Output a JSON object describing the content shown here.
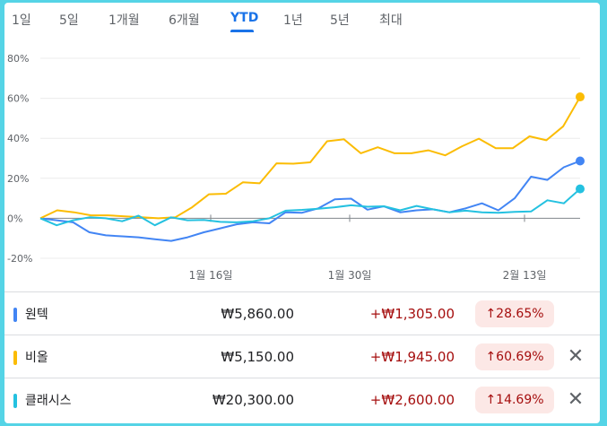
{
  "tabs": [
    "1일",
    "5일",
    "1개월",
    "6개월",
    "YTD",
    "1년",
    "5년",
    "최대"
  ],
  "active_tab": "YTD",
  "chart_data": {
    "type": "line",
    "y_ticks": [
      "80%",
      "60%",
      "40%",
      "20%",
      "0%",
      "-20%"
    ],
    "x_ticks": [
      "1월 16일",
      "1월 30일",
      "2월 13일"
    ],
    "ylim": [
      -20,
      80
    ],
    "zero_line": true,
    "series": [
      {
        "name": "원텍",
        "color": "#4285f4",
        "values": [
          0,
          -1,
          -2,
          -7,
          -8.5,
          -9,
          -9.5,
          -10.5,
          -11.3,
          -9.5,
          -7,
          -5,
          -3,
          -2,
          -2.5,
          3,
          2.8,
          5,
          9.5,
          9.8,
          4.3,
          6,
          3,
          4,
          4.5,
          3,
          5,
          7.5,
          4,
          10,
          20.8,
          19.2,
          25.5,
          28.65
        ]
      },
      {
        "name": "비올",
        "color": "#fbbc04",
        "values": [
          0,
          4,
          3,
          1.5,
          1.5,
          1,
          0.5,
          0,
          0.5,
          5.5,
          12,
          12.3,
          18,
          17.5,
          27.5,
          27.3,
          28,
          38.5,
          39.5,
          32.5,
          35.5,
          32.5,
          32.5,
          34,
          31.5,
          36,
          39.8,
          35,
          35,
          41,
          39,
          46,
          60.69
        ]
      },
      {
        "name": "클래시스",
        "color": "#24c1e0",
        "values": [
          0,
          -3.5,
          -1,
          0.5,
          0,
          -1.5,
          1.3,
          -3.5,
          0.5,
          -1,
          -0.8,
          -1.8,
          -2,
          -1.5,
          0,
          3.8,
          4.2,
          4.8,
          5.5,
          6.5,
          5.8,
          6,
          4,
          6.2,
          4.5,
          3,
          3.8,
          3,
          2.8,
          3.2,
          3.4,
          9,
          7.5,
          14.69
        ]
      }
    ]
  },
  "rows": [
    {
      "name": "원텍",
      "color": "#4285f4",
      "price": "₩5,860.00",
      "change": "+₩1,305.00",
      "pct": "28.65%",
      "closable": false
    },
    {
      "name": "비올",
      "color": "#fbbc04",
      "price": "₩5,150.00",
      "change": "+₩1,945.00",
      "pct": "60.69%",
      "closable": true
    },
    {
      "name": "클래시스",
      "color": "#24c1e0",
      "price": "₩20,300.00",
      "change": "+₩2,600.00",
      "pct": "14.69%",
      "closable": true
    }
  ],
  "up_arrow": "↑",
  "close_icon": "✕"
}
